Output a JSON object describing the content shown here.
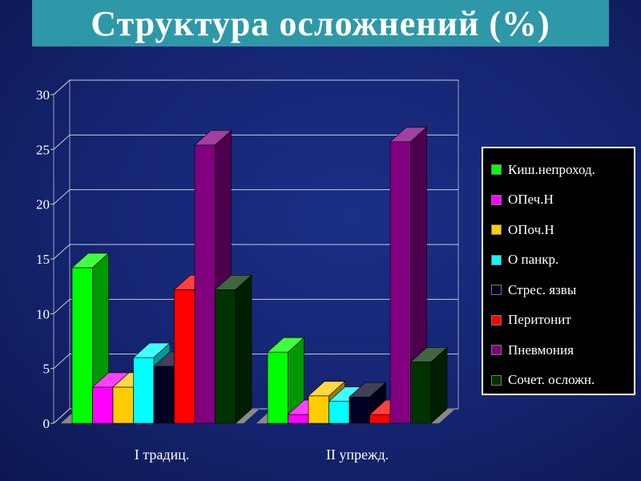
{
  "title": "Структура осложнений (%)",
  "chart_data": {
    "type": "bar",
    "categories": [
      "I традиц.",
      "II упрежд."
    ],
    "ylim": [
      0,
      30
    ],
    "yticks": [
      0,
      5,
      10,
      15,
      20,
      25,
      30
    ],
    "grid": true,
    "legend_position": "right",
    "three_d": true,
    "series": [
      {
        "name": "Киш.непроход.",
        "color": "#00ff00",
        "values": [
          14.2,
          6.5
        ]
      },
      {
        "name": "ОПеч.Н",
        "color": "#ff00ff",
        "values": [
          3.3,
          0.8
        ]
      },
      {
        "name": "ОПоч.Н",
        "color": "#ffcc00",
        "values": [
          3.3,
          2.5
        ]
      },
      {
        "name": "О панкр.",
        "color": "#00ffff",
        "values": [
          6.0,
          2.0
        ]
      },
      {
        "name": "Стрес. язвы",
        "color": "#000022",
        "values": [
          5.2,
          2.4
        ]
      },
      {
        "name": "Перитонит",
        "color": "#ff0000",
        "values": [
          12.2,
          0.8
        ]
      },
      {
        "name": "Пневмония",
        "color": "#800080",
        "values": [
          25.4,
          25.7
        ]
      },
      {
        "name": "Сочет. осложн.",
        "color": "#003300",
        "values": [
          12.2,
          5.6
        ]
      }
    ]
  }
}
